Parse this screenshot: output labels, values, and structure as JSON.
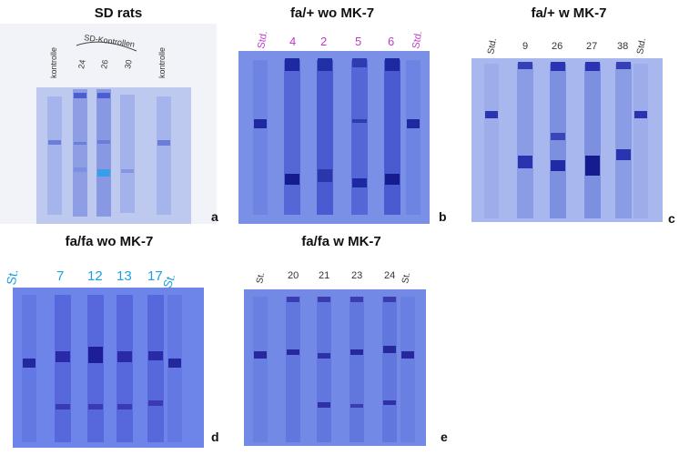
{
  "panels": [
    {
      "id": "a",
      "title": "SD rats",
      "letter": "a",
      "lane_labels": [
        "kontrolle",
        "24",
        "26",
        "30",
        "kontrolle"
      ],
      "bracket_label": "SD-Kontrollen",
      "label_color": "#333333",
      "gel_color": "#b6c3ee",
      "band_color": "#5a6ed4"
    },
    {
      "id": "b",
      "title": "fa/+ wo MK-7",
      "letter": "b",
      "lane_labels": [
        "Std.",
        "4",
        "2",
        "5",
        "6",
        "Std."
      ],
      "label_color": "#c13bc7",
      "gel_color": "#7b90e6",
      "band_color": "#1f2aa8"
    },
    {
      "id": "c",
      "title": "fa/+ w MK-7",
      "letter": "c",
      "lane_labels": [
        "Std.",
        "9",
        "26",
        "27",
        "38",
        "Std."
      ],
      "label_color": "#333333",
      "gel_color": "#a4b4ee",
      "band_color": "#2a34b0"
    },
    {
      "id": "d",
      "title": "fa/fa wo MK-7",
      "letter": "d",
      "lane_labels": [
        "St.",
        "7",
        "12",
        "13",
        "17",
        "St."
      ],
      "label_color": "#1aa0e0",
      "gel_color": "#6f86e8",
      "band_color": "#2a2aa8"
    },
    {
      "id": "e",
      "title": "fa/fa w MK-7",
      "letter": "e",
      "lane_labels": [
        "St.",
        "20",
        "21",
        "23",
        "24",
        "St."
      ],
      "label_color": "#333333",
      "gel_color": "#7389e6",
      "band_color": "#26289e"
    }
  ]
}
